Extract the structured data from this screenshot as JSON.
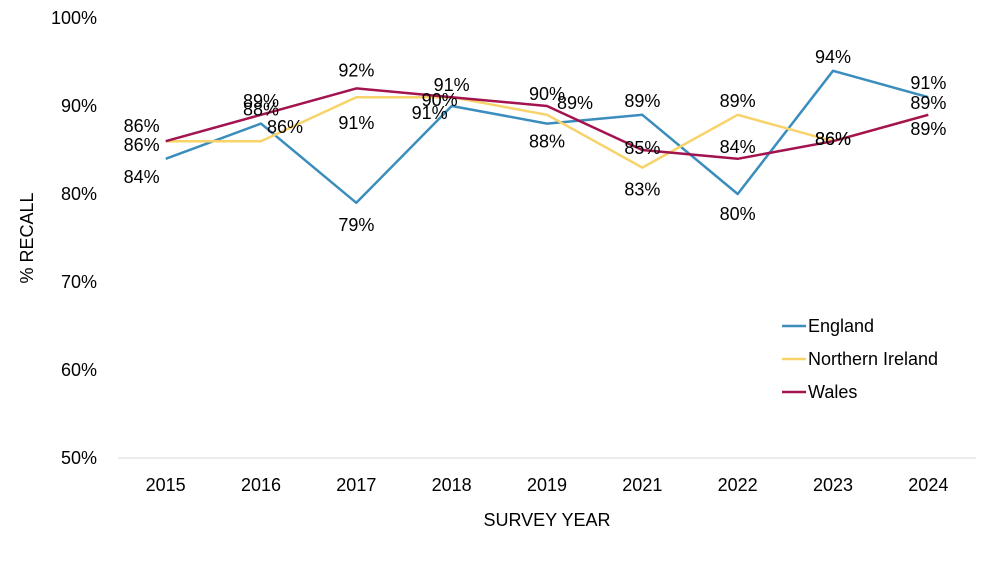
{
  "chart_data": {
    "type": "line",
    "title": "",
    "xlabel": "SURVEY YEAR",
    "ylabel": "% RECALL",
    "categories": [
      "2015",
      "2016",
      "2017",
      "2018",
      "2019",
      "2021",
      "2022",
      "2023",
      "2024"
    ],
    "ylim": [
      50,
      100
    ],
    "yticks": [
      50,
      60,
      70,
      80,
      90,
      100
    ],
    "ytick_labels": [
      "50%",
      "60%",
      "70%",
      "80%",
      "90%",
      "100%"
    ],
    "grid": false,
    "legend_position": "right",
    "series": [
      {
        "name": "England",
        "color": "#3b8dbd",
        "values": [
          84,
          88,
          79,
          90,
          88,
          89,
          80,
          94,
          91
        ],
        "labels": [
          "84%",
          "88%",
          "79%",
          "90%",
          "88%",
          "89%",
          "80%",
          "94%",
          "91%"
        ]
      },
      {
        "name": "Northern Ireland",
        "color": "#f7d36a",
        "values": [
          86,
          86,
          91,
          91,
          89,
          83,
          89,
          86,
          89
        ],
        "labels": [
          "86%",
          "86%",
          "91%",
          "91%",
          "89%",
          "83%",
          "89%",
          "86%",
          "89%"
        ]
      },
      {
        "name": "Wales",
        "color": "#a3134f",
        "values": [
          86,
          89,
          92,
          91,
          90,
          85,
          84,
          86,
          89
        ],
        "labels": [
          "86%",
          "89%",
          "92%",
          "91%",
          "90%",
          "85%",
          "84%",
          "86%",
          "89%"
        ]
      }
    ]
  }
}
